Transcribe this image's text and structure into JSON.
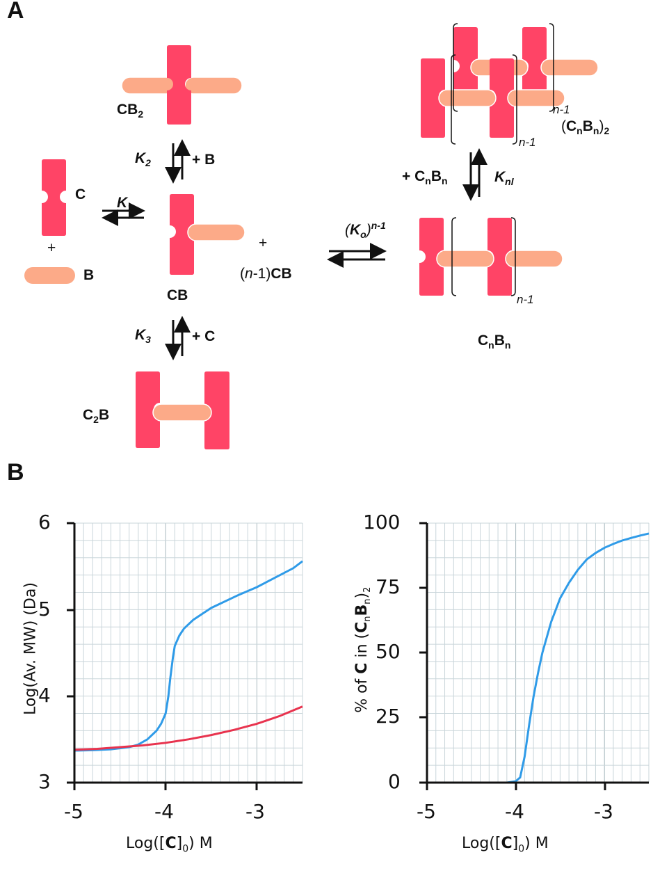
{
  "panels": {
    "a": {
      "label": "A"
    },
    "b": {
      "label": "B"
    }
  },
  "scheme": {
    "colors": {
      "C": "#ff4466",
      "B": "#fcaa88",
      "ink": "#111111"
    },
    "species": {
      "CB2": {
        "main": "CB",
        "sub": "2"
      },
      "C": {
        "main": "C"
      },
      "B": {
        "main": "B"
      },
      "CB": {
        "main": "CB"
      },
      "C2B": {
        "pre": "C",
        "sub": "2",
        "post": "B"
      },
      "n1CB": {
        "open": "(",
        "n": "n",
        "close": "-1)",
        "main": "CB"
      },
      "CnBn": {
        "c": "C",
        "n1": "n",
        "b": "B",
        "n2": "n"
      },
      "CnBn2": {
        "open": "(",
        "c": "C",
        "n1": "n",
        "b": "B",
        "n2": "n",
        "close": ")",
        "sub": "2"
      },
      "plus": "+",
      "bracket_sub": "n-1"
    },
    "constants": {
      "K1": {
        "k": "K",
        "sub": "1"
      },
      "K2": {
        "k": "K",
        "sub": "2"
      },
      "K3": {
        "k": "K",
        "sub": "3"
      },
      "Knl": {
        "k": "K",
        "sub": "nl"
      },
      "Ko": {
        "open": "(",
        "k": "K",
        "sub": "o",
        "close": ")",
        "sup": "n-1"
      }
    },
    "reagents": {
      "plusB": "+ B",
      "plusC": "+ C",
      "plusCnBn": {
        "plus": "+ ",
        "c": "C",
        "n1": "n",
        "b": "B",
        "n2": "n"
      }
    }
  },
  "chart_data": [
    {
      "type": "line",
      "title": "",
      "xlabel": "Log([C]0) M",
      "ylabel": "Log(Av. MW) (Da)",
      "xlim": [
        -5,
        -2.5
      ],
      "ylim": [
        3,
        6
      ],
      "xticks": [
        "-5",
        "-4",
        "-3"
      ],
      "yticks": [
        "3",
        "4",
        "5",
        "6"
      ],
      "grid": true,
      "legend": "none",
      "series": [
        {
          "name": "blue",
          "color": "#2f9be8",
          "x": [
            -5.0,
            -4.8,
            -4.6,
            -4.4,
            -4.3,
            -4.2,
            -4.1,
            -4.05,
            -4.0,
            -3.97,
            -3.95,
            -3.92,
            -3.9,
            -3.85,
            -3.8,
            -3.7,
            -3.6,
            -3.5,
            -3.4,
            -3.2,
            -3.0,
            -2.8,
            -2.6,
            -2.5
          ],
          "y": [
            3.37,
            3.375,
            3.385,
            3.41,
            3.44,
            3.5,
            3.6,
            3.68,
            3.8,
            4.0,
            4.2,
            4.45,
            4.58,
            4.7,
            4.78,
            4.88,
            4.95,
            5.02,
            5.07,
            5.17,
            5.26,
            5.37,
            5.48,
            5.56
          ]
        },
        {
          "name": "red",
          "color": "#e8334e",
          "x": [
            -5.0,
            -4.75,
            -4.5,
            -4.25,
            -4.0,
            -3.75,
            -3.5,
            -3.25,
            -3.0,
            -2.75,
            -2.5
          ],
          "y": [
            3.38,
            3.39,
            3.41,
            3.43,
            3.46,
            3.5,
            3.55,
            3.61,
            3.68,
            3.77,
            3.88
          ]
        }
      ]
    },
    {
      "type": "line",
      "title": "",
      "xlabel": "Log([C]0) M",
      "ylabel": "% of C in (CnBn)2",
      "xlim": [
        -5,
        -2.5
      ],
      "ylim": [
        0,
        100
      ],
      "xticks": [
        "-5",
        "-4",
        "-3"
      ],
      "yticks": [
        "0",
        "25",
        "50",
        "75",
        "100"
      ],
      "grid": true,
      "legend": "none",
      "series": [
        {
          "name": "blue",
          "color": "#2f9be8",
          "x": [
            -5.0,
            -4.5,
            -4.1,
            -4.0,
            -3.95,
            -3.9,
            -3.85,
            -3.8,
            -3.75,
            -3.7,
            -3.6,
            -3.5,
            -3.4,
            -3.3,
            -3.2,
            -3.1,
            -3.0,
            -2.9,
            -2.8,
            -2.7,
            -2.6,
            -2.5
          ],
          "y": [
            0,
            0,
            0,
            0.5,
            2,
            10,
            22,
            33,
            42,
            50,
            62,
            71,
            77,
            82,
            86,
            88.5,
            90.5,
            92,
            93.3,
            94.3,
            95.2,
            96
          ]
        }
      ]
    }
  ],
  "axes_text": {
    "left": {
      "ylabel": "Log(Av. MW) (Da)",
      "xlabel_pre": "Log([",
      "xlabel_bold": "C",
      "xlabel_mid": "]",
      "xlabel_sub": "0",
      "xlabel_post": ") M",
      "yticks": [
        "6",
        "5",
        "4",
        "3"
      ],
      "xticks": [
        "-5",
        "-4",
        "-3"
      ]
    },
    "right": {
      "ylabel_pre": "% of ",
      "ylabel_bold": "C",
      "ylabel_in": " in (",
      "ylabel_c": "C",
      "ylabel_n1": "n",
      "ylabel_b": "B",
      "ylabel_n2": "n",
      "ylabel_close": ")",
      "ylabel_sub": "2",
      "xlabel_pre": "Log([",
      "xlabel_bold": "C",
      "xlabel_mid": "]",
      "xlabel_sub": "0",
      "xlabel_post": ") M",
      "yticks": [
        "100",
        "75",
        "50",
        "25",
        "0"
      ],
      "xticks": [
        "-5",
        "-4",
        "-3"
      ]
    }
  }
}
